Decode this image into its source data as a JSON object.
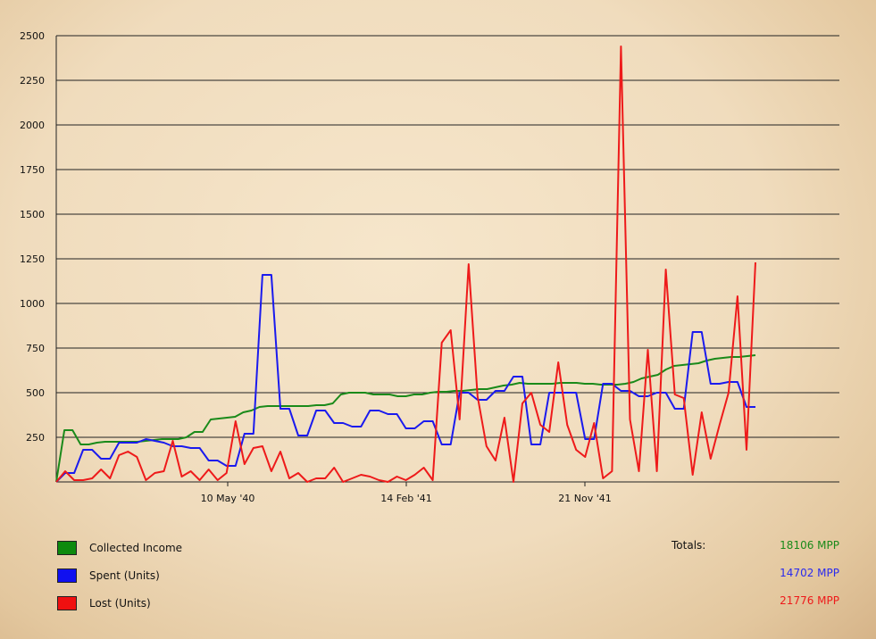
{
  "chart_data": {
    "type": "line",
    "yticks": [
      "2500",
      "2250",
      "2000",
      "1750",
      "1500",
      "1250",
      "1000",
      "750",
      "500",
      "250"
    ],
    "ylim": [
      0,
      2500
    ],
    "xtick_labels": [
      "10 May '40",
      "14 Feb '41",
      "21 Nov '41"
    ],
    "grid": true,
    "series": [
      {
        "name": "Collected Income",
        "color": "#1a8a1a",
        "values": [
          0,
          290,
          290,
          210,
          210,
          220,
          225,
          225,
          225,
          225,
          225,
          230,
          235,
          240,
          240,
          240,
          250,
          280,
          280,
          350,
          355,
          360,
          365,
          390,
          400,
          420,
          425,
          425,
          425,
          425,
          425,
          425,
          430,
          430,
          440,
          490,
          500,
          500,
          500,
          490,
          490,
          490,
          480,
          480,
          490,
          490,
          500,
          505,
          505,
          510,
          510,
          515,
          520,
          520,
          530,
          540,
          545,
          555,
          550,
          550,
          550,
          550,
          555,
          555,
          555,
          550,
          550,
          545,
          545,
          545,
          550,
          560,
          580,
          590,
          600,
          630,
          650,
          655,
          660,
          665,
          680,
          690,
          695,
          700,
          700,
          705,
          710
        ]
      },
      {
        "name": "Spent (Units)",
        "color": "#1a1aee",
        "values": [
          0,
          50,
          50,
          180,
          180,
          130,
          130,
          220,
          220,
          220,
          240,
          230,
          220,
          200,
          200,
          190,
          190,
          120,
          120,
          90,
          90,
          270,
          270,
          1160,
          1160,
          410,
          410,
          260,
          260,
          400,
          400,
          330,
          330,
          310,
          310,
          400,
          400,
          380,
          380,
          300,
          300,
          340,
          340,
          210,
          210,
          500,
          500,
          460,
          460,
          510,
          510,
          590,
          590,
          210,
          210,
          500,
          500,
          500,
          500,
          240,
          240,
          550,
          550,
          510,
          510,
          480,
          480,
          500,
          500,
          410,
          410,
          840,
          840,
          550,
          550,
          560,
          560,
          420,
          420
        ]
      },
      {
        "name": "Lost (Units)",
        "color": "#ee1a1a",
        "values": [
          0,
          60,
          10,
          10,
          20,
          70,
          20,
          150,
          170,
          140,
          10,
          50,
          60,
          230,
          30,
          60,
          10,
          70,
          10,
          50,
          340,
          100,
          190,
          200,
          60,
          170,
          20,
          50,
          0,
          20,
          20,
          80,
          0,
          20,
          40,
          30,
          10,
          0,
          30,
          10,
          40,
          80,
          10,
          780,
          850,
          350,
          1220,
          480,
          200,
          120,
          360,
          0,
          440,
          500,
          320,
          280,
          670,
          320,
          180,
          140,
          330,
          20,
          60,
          2440,
          350,
          60,
          740,
          60,
          1190,
          490,
          470,
          40,
          390,
          130,
          320,
          500,
          1040,
          180,
          1230
        ]
      }
    ]
  },
  "legend": {
    "totals_label": "Totals:"
  },
  "totals": [
    "18106 MPP",
    "14702 MPP",
    "21776 MPP"
  ]
}
